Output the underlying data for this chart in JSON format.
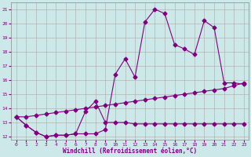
{
  "xlabel": "Windchill (Refroidissement éolien,°C)",
  "background_color": "#cce8e8",
  "grid_color": "#aaaaaa",
  "line_color": "#800080",
  "xlim": [
    -0.5,
    23.5
  ],
  "ylim": [
    11.8,
    21.5
  ],
  "yticks": [
    12,
    13,
    14,
    15,
    16,
    17,
    18,
    19,
    20,
    21
  ],
  "xticks": [
    0,
    1,
    2,
    3,
    4,
    5,
    6,
    7,
    8,
    9,
    10,
    11,
    12,
    13,
    14,
    15,
    16,
    17,
    18,
    19,
    20,
    21,
    22,
    23
  ],
  "line1_x": [
    0,
    1,
    2,
    3,
    4,
    5,
    6,
    7,
    8,
    9,
    10,
    11,
    12,
    13,
    14,
    15,
    16,
    17,
    18,
    19,
    20,
    21,
    22,
    23
  ],
  "line1_y": [
    13.4,
    12.8,
    12.3,
    12.0,
    12.1,
    12.1,
    12.2,
    12.2,
    12.2,
    12.5,
    16.4,
    17.5,
    16.2,
    20.1,
    21.0,
    20.7,
    18.5,
    18.2,
    17.8,
    20.2,
    19.7,
    15.8,
    15.8,
    15.7
  ],
  "line2_x": [
    0,
    1,
    2,
    3,
    4,
    5,
    6,
    7,
    8,
    9,
    10,
    11,
    12,
    13,
    14,
    15,
    16,
    17,
    18,
    19,
    20,
    21,
    22,
    23
  ],
  "line2_y": [
    13.4,
    12.8,
    12.3,
    12.0,
    12.1,
    12.1,
    12.2,
    13.8,
    14.5,
    13.0,
    13.0,
    13.0,
    12.9,
    12.9,
    12.9,
    12.9,
    12.9,
    12.9,
    12.9,
    12.9,
    12.9,
    12.9,
    12.9,
    12.9
  ],
  "line3_x": [
    0,
    1,
    2,
    3,
    4,
    5,
    6,
    7,
    8,
    9,
    10,
    11,
    12,
    13,
    14,
    15,
    16,
    17,
    18,
    19,
    20,
    21,
    22,
    23
  ],
  "line3_y": [
    13.4,
    13.4,
    13.5,
    13.6,
    13.7,
    13.8,
    13.9,
    14.0,
    14.1,
    14.2,
    14.3,
    14.4,
    14.5,
    14.6,
    14.7,
    14.8,
    14.9,
    15.0,
    15.1,
    15.2,
    15.3,
    15.4,
    15.6,
    15.8
  ],
  "marker": "D",
  "markersize": 2.5,
  "linewidth": 0.8
}
